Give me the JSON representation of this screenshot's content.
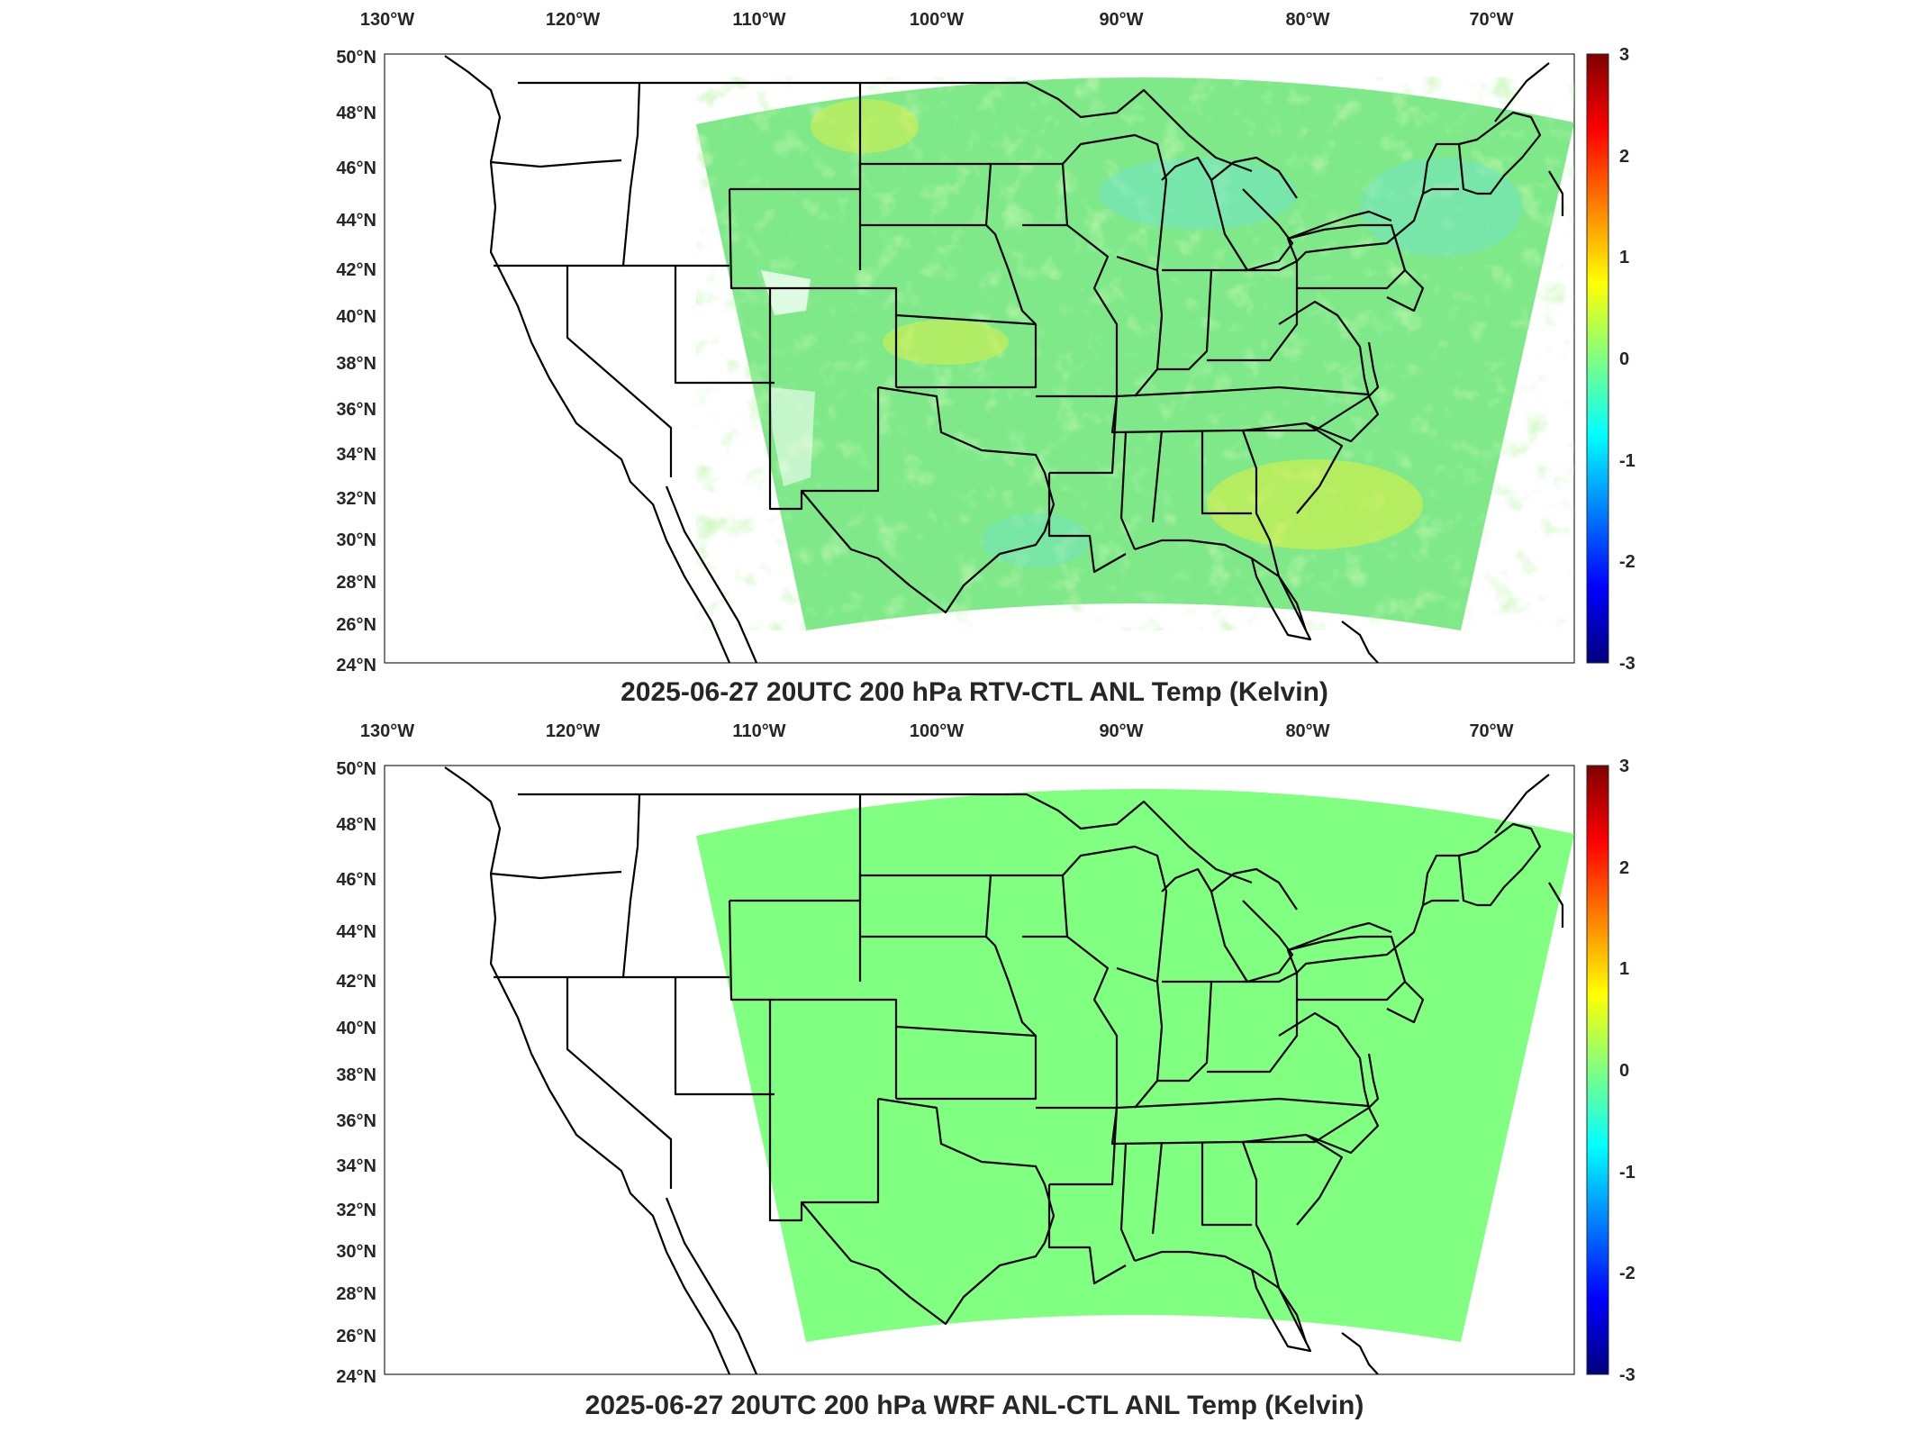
{
  "panels": [
    {
      "title": "2025-06-27 20UTC 200 hPa RTV-CTL ANL Temp (Kelvin)",
      "lon_ticks": [
        "130°W",
        "120°W",
        "110°W",
        "100°W",
        "90°W",
        "80°W",
        "70°W"
      ],
      "lat_ticks": [
        "50°N",
        "48°N",
        "46°N",
        "44°N",
        "42°N",
        "40°N",
        "38°N",
        "36°N",
        "34°N",
        "32°N",
        "30°N",
        "28°N",
        "26°N",
        "24°N"
      ],
      "colorbar": {
        "ticks": [
          "3",
          "2",
          "1",
          "0",
          "-1",
          "-2",
          "-3"
        ],
        "range": [
          -3,
          3
        ],
        "colormap": "jet"
      },
      "field": "noisy near-zero differences, mostly 0 to +0.6 K (green/yellow) with scattered negative patches (cyan)"
    },
    {
      "title": "2025-06-27 20UTC 200 hPa WRF ANL-CTL ANL Temp (Kelvin)",
      "lon_ticks": [
        "130°W",
        "120°W",
        "110°W",
        "100°W",
        "90°W",
        "80°W",
        "70°W"
      ],
      "lat_ticks": [
        "50°N",
        "48°N",
        "46°N",
        "44°N",
        "42°N",
        "40°N",
        "38°N",
        "36°N",
        "34°N",
        "32°N",
        "30°N",
        "28°N",
        "26°N",
        "24°N"
      ],
      "colorbar": {
        "ticks": [
          "3",
          "2",
          "1",
          "0",
          "-1",
          "-2",
          "-3"
        ],
        "range": [
          -3,
          3
        ],
        "colormap": "jet"
      },
      "field": "uniform 0 K everywhere in the domain"
    }
  ],
  "colors": {
    "uniform_zero": "#80ff80",
    "noise_green": "#8af07a",
    "noise_yellow": "#d8f23a",
    "noise_cyan": "#4fe6c0"
  }
}
